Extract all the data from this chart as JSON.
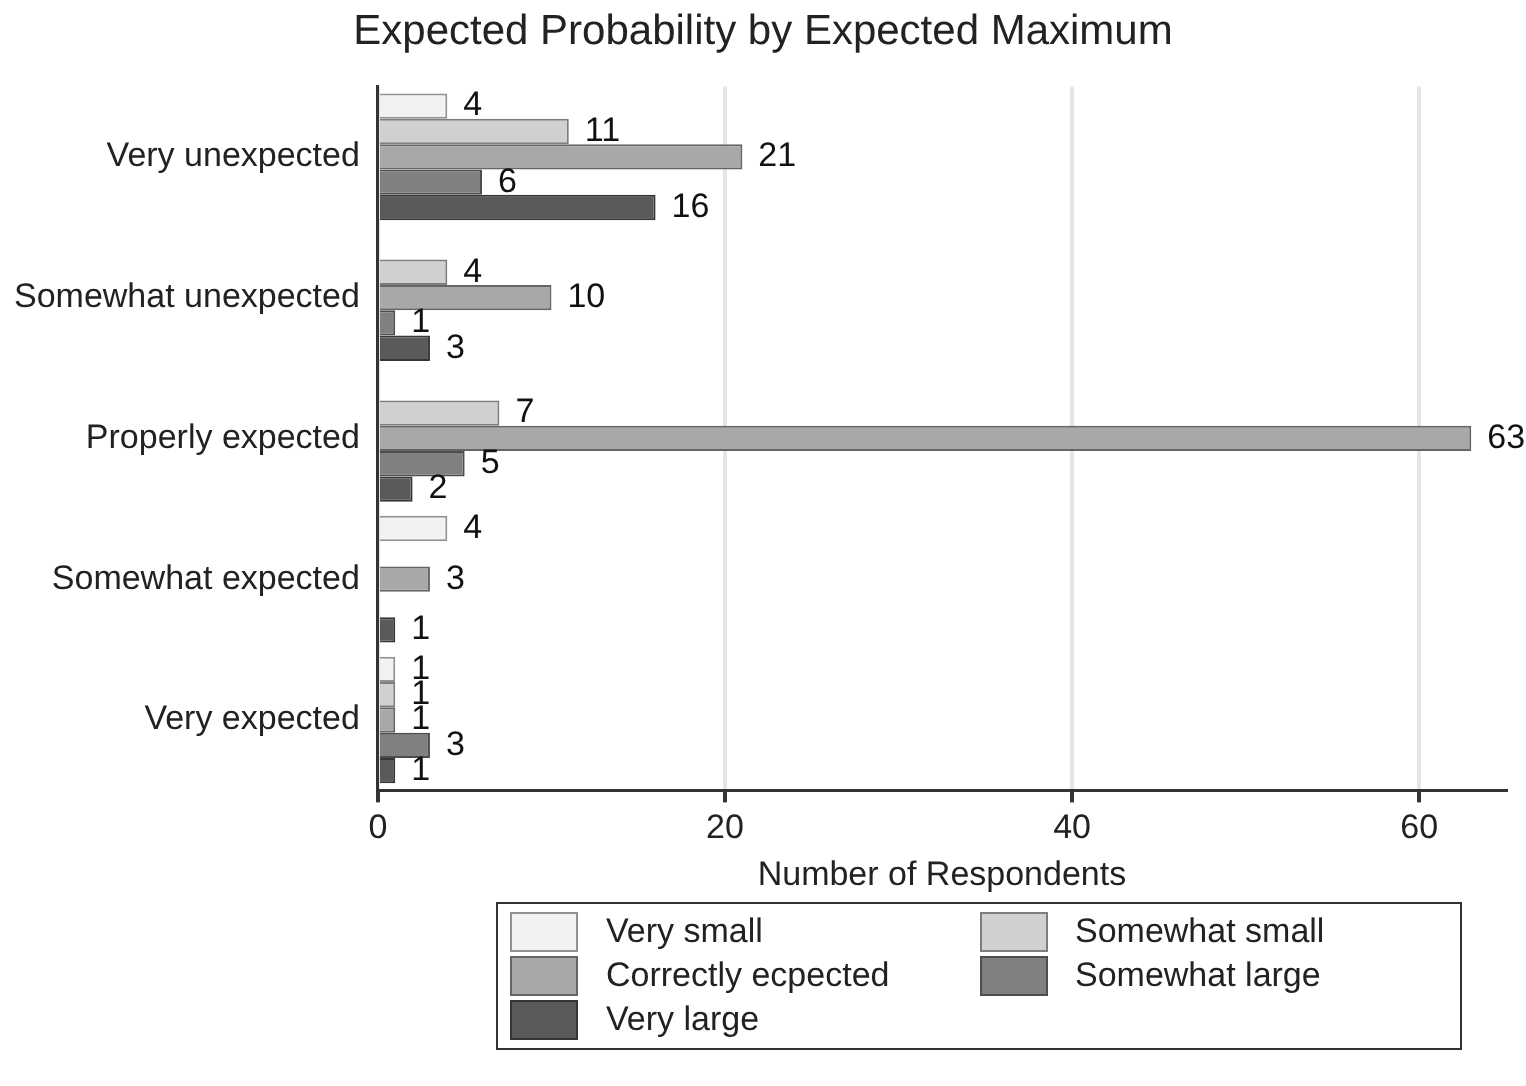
{
  "chart_data": {
    "type": "bar",
    "orientation": "horizontal",
    "title": "Expected Probability by Expected Maximum",
    "xlabel": "Number of Respondents",
    "categories": [
      "Very unexpected",
      "Somewhat unexpected",
      "Properly expected",
      "Somewhat expected",
      "Very expected"
    ],
    "series": [
      {
        "name": "Very small",
        "color": "#f2f2f2",
        "values": [
          4,
          null,
          null,
          4,
          1
        ]
      },
      {
        "name": "Somewhat small",
        "color": "#d0d0d0",
        "values": [
          11,
          4,
          7,
          null,
          1
        ]
      },
      {
        "name": "Correctly ecpected",
        "color": "#a8a8a8",
        "values": [
          21,
          10,
          63,
          3,
          1
        ]
      },
      {
        "name": "Somewhat large",
        "color": "#808080",
        "values": [
          6,
          1,
          5,
          null,
          3
        ]
      },
      {
        "name": "Very large",
        "color": "#5a5a5a",
        "values": [
          16,
          3,
          2,
          1,
          1
        ]
      }
    ],
    "xlim": [
      0,
      65
    ],
    "xticks": [
      0,
      20,
      40,
      60
    ],
    "grid": "x",
    "legend": "bottom",
    "data_labels": true
  }
}
